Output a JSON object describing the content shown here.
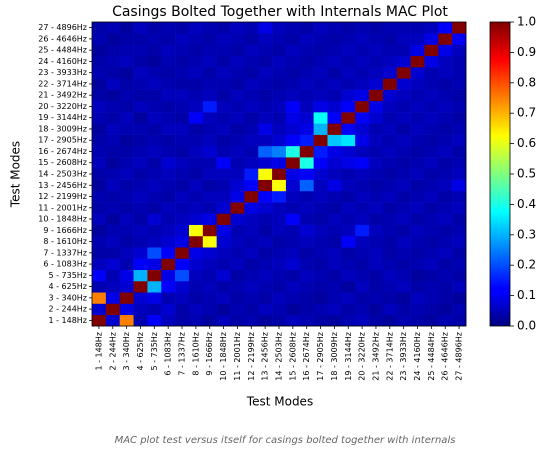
{
  "chart_data": {
    "type": "heatmap",
    "title": "Casings Bolted Together with Internals MAC Plot",
    "x_label": "Test Modes",
    "y_label": "Test Modes",
    "caption": "MAC plot test versus itself for casings bolted together with internals",
    "colormap": "jet",
    "categories": [
      "1 - 148Hz",
      "2 - 244Hz",
      "3 - 340Hz",
      "4 - 625Hz",
      "5 - 735Hz",
      "6 - 1083Hz",
      "7 - 1337Hz",
      "8 - 1610Hz",
      "9 - 1666Hz",
      "10 - 1848Hz",
      "11 - 2001Hz",
      "12 - 2199Hz",
      "13 - 2456Hz",
      "14 - 2503Hz",
      "15 - 2608Hz",
      "16 - 2674Hz",
      "17 - 2905Hz",
      "18 - 3009Hz",
      "19 - 3144Hz",
      "20 - 3220Hz",
      "21 - 3492Hz",
      "22 - 3714Hz",
      "23 - 3933Hz",
      "24 - 4160Hz",
      "25 - 4484Hz",
      "26 - 4646Hz",
      "27 - 4896Hz"
    ],
    "clim": [
      0,
      1
    ],
    "cticks": [
      {
        "value": 0,
        "label": "0.0"
      },
      {
        "value": 0.1,
        "label": "0.1"
      },
      {
        "value": 0.2,
        "label": "0.2"
      },
      {
        "value": 0.3,
        "label": "0.3"
      },
      {
        "value": 0.4,
        "label": "0.4"
      },
      {
        "value": 0.5,
        "label": "0.5"
      },
      {
        "value": 0.6,
        "label": "0.6"
      },
      {
        "value": 0.7,
        "label": "0.7"
      },
      {
        "value": 0.8,
        "label": "0.8"
      },
      {
        "value": 0.9,
        "label": "0.9"
      },
      {
        "value": 1,
        "label": "1.0"
      }
    ],
    "z": [
      [
        1.0,
        0.08,
        0.75,
        0.05,
        0.12,
        0.06,
        0.04,
        0.05,
        0.03,
        0.06,
        0.04,
        0.05,
        0.03,
        0.04,
        0.06,
        0.05,
        0.04,
        0.03,
        0.05,
        0.06,
        0.04,
        0.03,
        0.05,
        0.04,
        0.03,
        0.05,
        0.04
      ],
      [
        0.08,
        1.0,
        0.1,
        0.06,
        0.05,
        0.08,
        0.04,
        0.06,
        0.05,
        0.03,
        0.05,
        0.04,
        0.06,
        0.05,
        0.03,
        0.04,
        0.05,
        0.06,
        0.04,
        0.05,
        0.03,
        0.06,
        0.04,
        0.05,
        0.04,
        0.03,
        0.05
      ],
      [
        0.75,
        0.1,
        1.0,
        0.08,
        0.1,
        0.05,
        0.06,
        0.04,
        0.05,
        0.06,
        0.04,
        0.05,
        0.04,
        0.06,
        0.05,
        0.04,
        0.03,
        0.05,
        0.06,
        0.04,
        0.05,
        0.04,
        0.03,
        0.06,
        0.05,
        0.04,
        0.03
      ],
      [
        0.05,
        0.06,
        0.08,
        1.0,
        0.3,
        0.12,
        0.08,
        0.05,
        0.06,
        0.04,
        0.05,
        0.06,
        0.05,
        0.04,
        0.06,
        0.05,
        0.04,
        0.05,
        0.03,
        0.06,
        0.04,
        0.05,
        0.06,
        0.04,
        0.05,
        0.04,
        0.06
      ],
      [
        0.12,
        0.05,
        0.1,
        0.3,
        1.0,
        0.1,
        0.2,
        0.06,
        0.05,
        0.08,
        0.04,
        0.05,
        0.06,
        0.05,
        0.04,
        0.06,
        0.05,
        0.04,
        0.06,
        0.05,
        0.04,
        0.06,
        0.05,
        0.03,
        0.04,
        0.05,
        0.04
      ],
      [
        0.06,
        0.08,
        0.05,
        0.12,
        0.1,
        1.0,
        0.12,
        0.08,
        0.06,
        0.05,
        0.06,
        0.04,
        0.05,
        0.06,
        0.08,
        0.05,
        0.04,
        0.06,
        0.05,
        0.04,
        0.06,
        0.05,
        0.04,
        0.05,
        0.06,
        0.04,
        0.05
      ],
      [
        0.04,
        0.04,
        0.06,
        0.08,
        0.2,
        0.12,
        1.0,
        0.1,
        0.08,
        0.06,
        0.05,
        0.06,
        0.04,
        0.05,
        0.06,
        0.04,
        0.05,
        0.06,
        0.04,
        0.05,
        0.06,
        0.04,
        0.05,
        0.04,
        0.05,
        0.06,
        0.04
      ],
      [
        0.05,
        0.06,
        0.04,
        0.05,
        0.06,
        0.08,
        0.1,
        1.0,
        0.62,
        0.08,
        0.06,
        0.05,
        0.06,
        0.04,
        0.05,
        0.06,
        0.05,
        0.04,
        0.12,
        0.06,
        0.05,
        0.04,
        0.06,
        0.05,
        0.04,
        0.05,
        0.06
      ],
      [
        0.03,
        0.05,
        0.05,
        0.06,
        0.05,
        0.06,
        0.08,
        0.62,
        1.0,
        0.1,
        0.05,
        0.06,
        0.04,
        0.06,
        0.05,
        0.08,
        0.06,
        0.05,
        0.06,
        0.15,
        0.06,
        0.05,
        0.04,
        0.06,
        0.05,
        0.04,
        0.05
      ],
      [
        0.06,
        0.03,
        0.06,
        0.04,
        0.08,
        0.05,
        0.06,
        0.08,
        0.1,
        1.0,
        0.08,
        0.06,
        0.05,
        0.06,
        0.12,
        0.05,
        0.04,
        0.06,
        0.05,
        0.06,
        0.04,
        0.05,
        0.06,
        0.04,
        0.05,
        0.06,
        0.04
      ],
      [
        0.04,
        0.05,
        0.04,
        0.05,
        0.04,
        0.06,
        0.05,
        0.06,
        0.05,
        0.08,
        1.0,
        0.1,
        0.08,
        0.06,
        0.05,
        0.06,
        0.05,
        0.04,
        0.06,
        0.05,
        0.06,
        0.04,
        0.05,
        0.06,
        0.04,
        0.05,
        0.06
      ],
      [
        0.05,
        0.04,
        0.05,
        0.06,
        0.05,
        0.04,
        0.06,
        0.05,
        0.06,
        0.06,
        0.1,
        1.0,
        0.12,
        0.15,
        0.06,
        0.05,
        0.06,
        0.05,
        0.04,
        0.06,
        0.05,
        0.06,
        0.04,
        0.05,
        0.06,
        0.04,
        0.05
      ],
      [
        0.03,
        0.06,
        0.04,
        0.05,
        0.06,
        0.05,
        0.04,
        0.06,
        0.04,
        0.05,
        0.08,
        0.12,
        1.0,
        0.62,
        0.08,
        0.22,
        0.06,
        0.1,
        0.06,
        0.05,
        0.04,
        0.05,
        0.06,
        0.04,
        0.05,
        0.06,
        0.1
      ],
      [
        0.04,
        0.05,
        0.06,
        0.04,
        0.05,
        0.06,
        0.05,
        0.04,
        0.06,
        0.06,
        0.06,
        0.15,
        0.62,
        1.0,
        0.1,
        0.12,
        0.08,
        0.06,
        0.05,
        0.06,
        0.05,
        0.04,
        0.05,
        0.06,
        0.04,
        0.05,
        0.06
      ],
      [
        0.06,
        0.03,
        0.05,
        0.06,
        0.04,
        0.08,
        0.06,
        0.05,
        0.05,
        0.12,
        0.05,
        0.06,
        0.08,
        0.1,
        1.0,
        0.4,
        0.12,
        0.08,
        0.1,
        0.12,
        0.06,
        0.05,
        0.04,
        0.05,
        0.06,
        0.04,
        0.05
      ],
      [
        0.05,
        0.04,
        0.04,
        0.05,
        0.06,
        0.05,
        0.04,
        0.06,
        0.08,
        0.05,
        0.06,
        0.05,
        0.22,
        0.25,
        0.4,
        1.0,
        0.15,
        0.1,
        0.08,
        0.06,
        0.05,
        0.06,
        0.05,
        0.04,
        0.05,
        0.06,
        0.04
      ],
      [
        0.04,
        0.05,
        0.03,
        0.04,
        0.05,
        0.04,
        0.05,
        0.05,
        0.06,
        0.04,
        0.05,
        0.06,
        0.06,
        0.08,
        0.12,
        0.15,
        1.0,
        0.32,
        0.35,
        0.1,
        0.06,
        0.05,
        0.06,
        0.05,
        0.04,
        0.05,
        0.06
      ],
      [
        0.03,
        0.06,
        0.05,
        0.05,
        0.04,
        0.06,
        0.06,
        0.04,
        0.05,
        0.06,
        0.04,
        0.05,
        0.1,
        0.06,
        0.08,
        0.1,
        0.3,
        1.0,
        0.12,
        0.08,
        0.05,
        0.06,
        0.04,
        0.06,
        0.05,
        0.04,
        0.05
      ],
      [
        0.05,
        0.04,
        0.06,
        0.03,
        0.06,
        0.05,
        0.04,
        0.12,
        0.06,
        0.05,
        0.06,
        0.04,
        0.06,
        0.05,
        0.1,
        0.08,
        0.38,
        0.12,
        1.0,
        0.12,
        0.08,
        0.05,
        0.06,
        0.05,
        0.06,
        0.05,
        0.04
      ],
      [
        0.06,
        0.05,
        0.04,
        0.06,
        0.05,
        0.04,
        0.05,
        0.06,
        0.15,
        0.06,
        0.05,
        0.06,
        0.05,
        0.06,
        0.12,
        0.06,
        0.1,
        0.08,
        0.12,
        1.0,
        0.1,
        0.06,
        0.05,
        0.06,
        0.05,
        0.06,
        0.05
      ],
      [
        0.04,
        0.03,
        0.05,
        0.04,
        0.04,
        0.06,
        0.06,
        0.05,
        0.06,
        0.04,
        0.06,
        0.05,
        0.04,
        0.05,
        0.06,
        0.05,
        0.06,
        0.05,
        0.08,
        0.1,
        1.0,
        0.08,
        0.06,
        0.05,
        0.06,
        0.05,
        0.04
      ],
      [
        0.03,
        0.06,
        0.04,
        0.05,
        0.06,
        0.05,
        0.04,
        0.04,
        0.05,
        0.05,
        0.04,
        0.06,
        0.05,
        0.04,
        0.05,
        0.06,
        0.05,
        0.06,
        0.05,
        0.06,
        0.08,
        1.0,
        0.08,
        0.06,
        0.05,
        0.04,
        0.05
      ],
      [
        0.05,
        0.04,
        0.03,
        0.06,
        0.05,
        0.04,
        0.05,
        0.06,
        0.04,
        0.06,
        0.05,
        0.04,
        0.06,
        0.05,
        0.04,
        0.05,
        0.06,
        0.04,
        0.06,
        0.05,
        0.06,
        0.08,
        1.0,
        0.08,
        0.05,
        0.06,
        0.05
      ],
      [
        0.04,
        0.05,
        0.06,
        0.04,
        0.03,
        0.05,
        0.04,
        0.05,
        0.06,
        0.04,
        0.06,
        0.05,
        0.04,
        0.06,
        0.05,
        0.04,
        0.05,
        0.06,
        0.05,
        0.06,
        0.05,
        0.06,
        0.08,
        1.0,
        0.1,
        0.06,
        0.05
      ],
      [
        0.03,
        0.04,
        0.05,
        0.05,
        0.04,
        0.06,
        0.05,
        0.04,
        0.05,
        0.05,
        0.04,
        0.06,
        0.05,
        0.04,
        0.06,
        0.05,
        0.04,
        0.05,
        0.06,
        0.05,
        0.06,
        0.05,
        0.05,
        0.1,
        1.0,
        0.1,
        0.06
      ],
      [
        0.05,
        0.03,
        0.04,
        0.04,
        0.05,
        0.04,
        0.06,
        0.05,
        0.04,
        0.06,
        0.05,
        0.04,
        0.06,
        0.05,
        0.04,
        0.06,
        0.05,
        0.04,
        0.05,
        0.06,
        0.05,
        0.04,
        0.06,
        0.06,
        0.1,
        1.0,
        0.12
      ],
      [
        0.04,
        0.05,
        0.03,
        0.06,
        0.04,
        0.05,
        0.04,
        0.06,
        0.05,
        0.04,
        0.06,
        0.05,
        0.1,
        0.06,
        0.05,
        0.04,
        0.06,
        0.05,
        0.04,
        0.05,
        0.04,
        0.05,
        0.05,
        0.05,
        0.06,
        0.12,
        1.0
      ]
    ]
  }
}
